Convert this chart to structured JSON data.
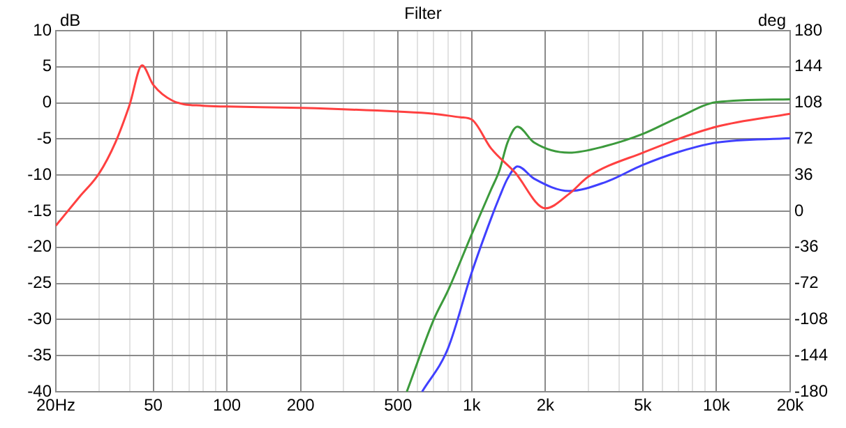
{
  "chart_data": {
    "type": "line",
    "title": "Filter",
    "ylabel": "dB",
    "y2label": "deg",
    "log": "x",
    "xlim": [
      20,
      20000
    ],
    "xticks": [
      {
        "value": 20,
        "label": "20Hz"
      },
      {
        "value": 30,
        "label": null
      },
      {
        "value": 40,
        "label": null
      },
      50,
      {
        "value": 60,
        "label": null
      },
      {
        "value": 70,
        "label": null
      },
      {
        "value": 80,
        "label": null
      },
      {
        "value": 90,
        "label": null
      },
      100,
      200,
      {
        "value": 300,
        "label": null
      },
      {
        "value": 400,
        "label": null
      },
      500,
      {
        "value": 600,
        "label": null
      },
      {
        "value": 700,
        "label": null
      },
      {
        "value": 800,
        "label": null
      },
      {
        "value": 900,
        "label": null
      },
      {
        "value": 1000,
        "label": "1k"
      },
      {
        "value": 2000,
        "label": "2k"
      },
      {
        "value": 3000,
        "label": null
      },
      {
        "value": 4000,
        "label": null
      },
      {
        "value": 5000,
        "label": "5k"
      },
      {
        "value": 6000,
        "label": null
      },
      {
        "value": 7000,
        "label": null
      },
      {
        "value": 8000,
        "label": null
      },
      {
        "value": 9000,
        "label": null
      },
      {
        "value": 10000,
        "label": "10k"
      },
      {
        "value": 20000,
        "label": "20k"
      }
    ],
    "ylim": [
      -40,
      10
    ],
    "yticks": [
      -40,
      -35,
      -30,
      -25,
      -20,
      -15,
      -10,
      -5,
      0,
      5,
      10
    ],
    "y2lim": [
      -180,
      180
    ],
    "y2ticks": [
      -180,
      -144,
      -108,
      -72,
      -36,
      0,
      36,
      72,
      108,
      144,
      180
    ],
    "grid": true,
    "legend": false,
    "marker": "none",
    "line_style": "solid",
    "series": [
      {
        "color": "#ff4040",
        "x": [
          20,
          25,
          30,
          35,
          40,
          45,
          50,
          60,
          80,
          100,
          200,
          500,
          700,
          900,
          1000,
          1200,
          1500,
          2000,
          2500,
          3000,
          5000,
          10000,
          20000
        ],
        "values": [
          -17,
          -13,
          -9.8,
          -5.5,
          -0.3,
          5.2,
          2.5,
          0.3,
          -0.4,
          -0.5,
          -0.7,
          -1.2,
          -1.5,
          -2,
          -2.3,
          -6.3,
          -9.6,
          -14.6,
          -12.6,
          -10.2,
          -6.9,
          -3.3,
          -1.5
        ]
      },
      {
        "color": "#3c9a3c",
        "x": [
          543,
          700,
          800,
          1000,
          1200,
          1300,
          1400,
          1538,
          1800,
          2500,
          3500,
          5000,
          7000,
          10000,
          20000
        ],
        "values": [
          -40,
          -30,
          -26,
          -18.2,
          -12,
          -9.3,
          -5.5,
          -3.3,
          -5.5,
          -6.9,
          -6,
          -4.3,
          -2,
          0.1,
          0.5
        ]
      },
      {
        "color": "#4040ff",
        "x": [
          627,
          800,
          1000,
          1200,
          1300,
          1400,
          1540,
          1800,
          2500,
          3500,
          5000,
          7000,
          10000,
          20000
        ],
        "values": [
          -40,
          -34,
          -23.5,
          -16,
          -13,
          -10.5,
          -8.8,
          -10.5,
          -12.2,
          -11,
          -8.6,
          -6.8,
          -5.5,
          -4.9
        ]
      }
    ]
  }
}
